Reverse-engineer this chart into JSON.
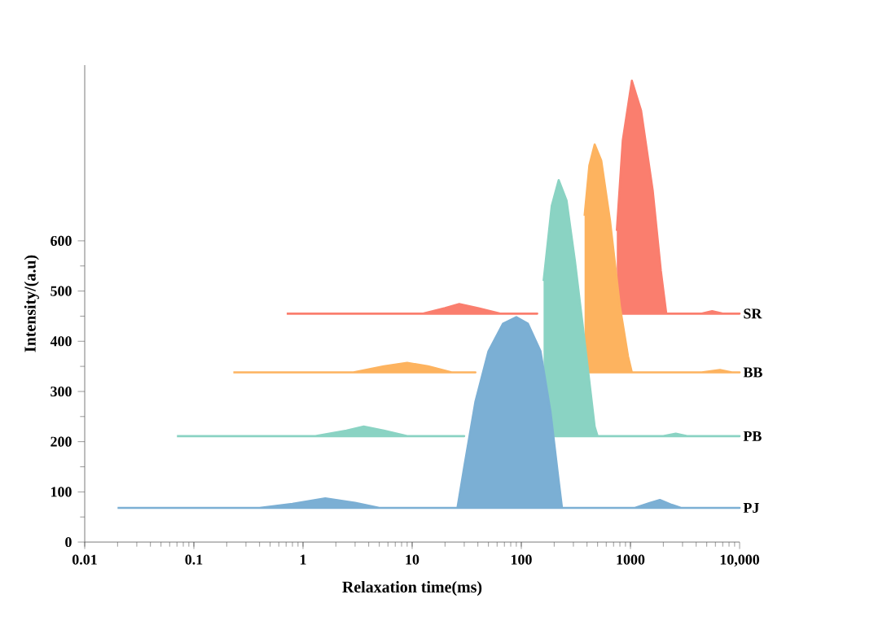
{
  "chart_data": {
    "type": "area",
    "xlabel": "Relaxation time(ms)",
    "ylabel": "Intensity/(a.u)",
    "log": "x",
    "xlim": [
      0.01,
      10000
    ],
    "xticks": [
      0.01,
      0.1,
      1,
      10,
      100,
      1000,
      {
        "value": 10000,
        "label": "10,000"
      }
    ],
    "ylim": [
      0,
      950
    ],
    "yticks": [
      0,
      100,
      200,
      300,
      400,
      500,
      600
    ],
    "series": [
      {
        "name": "SR",
        "color": "#fa7e6e",
        "x": [
          0.71,
          12.6,
          20,
          27,
          40,
          64,
          140,
          660,
          750,
          850,
          1030,
          1250,
          1600,
          1900,
          2130,
          4500,
          5600,
          7000,
          10000
        ],
        "values": [
          455,
          455,
          466,
          474,
          466,
          455,
          455,
          null,
          620,
          800,
          919,
          860,
          700,
          540,
          455,
          455,
          460,
          455,
          455
        ]
      },
      {
        "name": "BB",
        "color": "#fdb35f",
        "x": [
          0.23,
          2.9,
          5.5,
          9,
          14,
          23,
          38,
          310,
          380,
          420,
          470,
          540,
          650,
          800,
          950,
          1030,
          4500,
          6600,
          8500,
          10000
        ],
        "values": [
          338,
          338,
          350,
          357,
          350,
          338,
          338,
          null,
          650,
          750,
          792,
          760,
          640,
          470,
          370,
          338,
          338,
          343,
          338,
          338
        ]
      },
      {
        "name": "PB",
        "color": "#8ad3c3",
        "x": [
          0.07,
          1.3,
          2.5,
          3.6,
          5.5,
          9,
          30,
          125,
          160,
          190,
          220,
          260,
          310,
          390,
          470,
          500,
          2000,
          2600,
          3300,
          10000
        ],
        "values": [
          211,
          211,
          222,
          230,
          222,
          211,
          211,
          null,
          520,
          670,
          721,
          680,
          560,
          380,
          230,
          211,
          211,
          216,
          211,
          211
        ]
      },
      {
        "name": "PJ",
        "color": "#7bafd4",
        "x": [
          0.02,
          0.4,
          0.8,
          1.6,
          3,
          5,
          26,
          30,
          38,
          50,
          68,
          90,
          115,
          150,
          185,
          215,
          236,
          1100,
          1500,
          1860,
          2400,
          2900,
          10000
        ],
        "values": [
          68,
          68,
          76,
          87,
          78,
          68,
          68,
          150,
          280,
          380,
          435,
          448,
          435,
          380,
          260,
          140,
          68,
          68,
          78,
          84,
          74,
          68,
          68
        ]
      }
    ]
  }
}
